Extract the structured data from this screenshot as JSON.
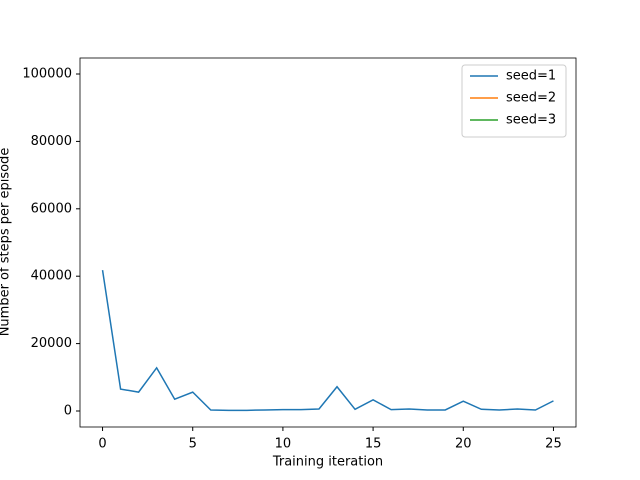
{
  "chart_data": {
    "type": "line",
    "xlabel": "Training iteration",
    "ylabel": "Number of steps per episode",
    "x": [
      0,
      1,
      2,
      3,
      4,
      5,
      6,
      7,
      8,
      9,
      10,
      11,
      12,
      13,
      14,
      15,
      16,
      17,
      18,
      19,
      20,
      21,
      22,
      23,
      24,
      25
    ],
    "series": [
      {
        "name": "seed=1",
        "color": "#1f77b4",
        "values": [
          41800,
          6500,
          5600,
          12800,
          3500,
          5600,
          300,
          200,
          200,
          300,
          400,
          400,
          600,
          7200,
          500,
          3300,
          400,
          600,
          300,
          300,
          2900,
          500,
          300,
          600,
          300,
          3000
        ]
      },
      {
        "name": "seed=2",
        "color": "#ff7f0e",
        "values": [
          null,
          null,
          null,
          null,
          null,
          null,
          null,
          null,
          null,
          null,
          null,
          null,
          null,
          null,
          null,
          null,
          null,
          null,
          null,
          null,
          null,
          null,
          null,
          null,
          null,
          null
        ]
      },
      {
        "name": "seed=3",
        "color": "#2ca02c",
        "values": [
          null,
          null,
          null,
          null,
          null,
          null,
          null,
          null,
          null,
          null,
          null,
          null,
          null,
          null,
          null,
          null,
          null,
          null,
          null,
          null,
          null,
          null,
          null,
          null,
          null,
          null
        ]
      }
    ],
    "xlim": [
      -1.25,
      26.25
    ],
    "xticks": [
      0,
      5,
      10,
      15,
      20,
      25
    ],
    "ylim": [
      -4750,
      104750
    ],
    "yticks": [
      0,
      20000,
      40000,
      60000,
      80000,
      100000
    ],
    "legend": "upper right",
    "grid": false
  }
}
